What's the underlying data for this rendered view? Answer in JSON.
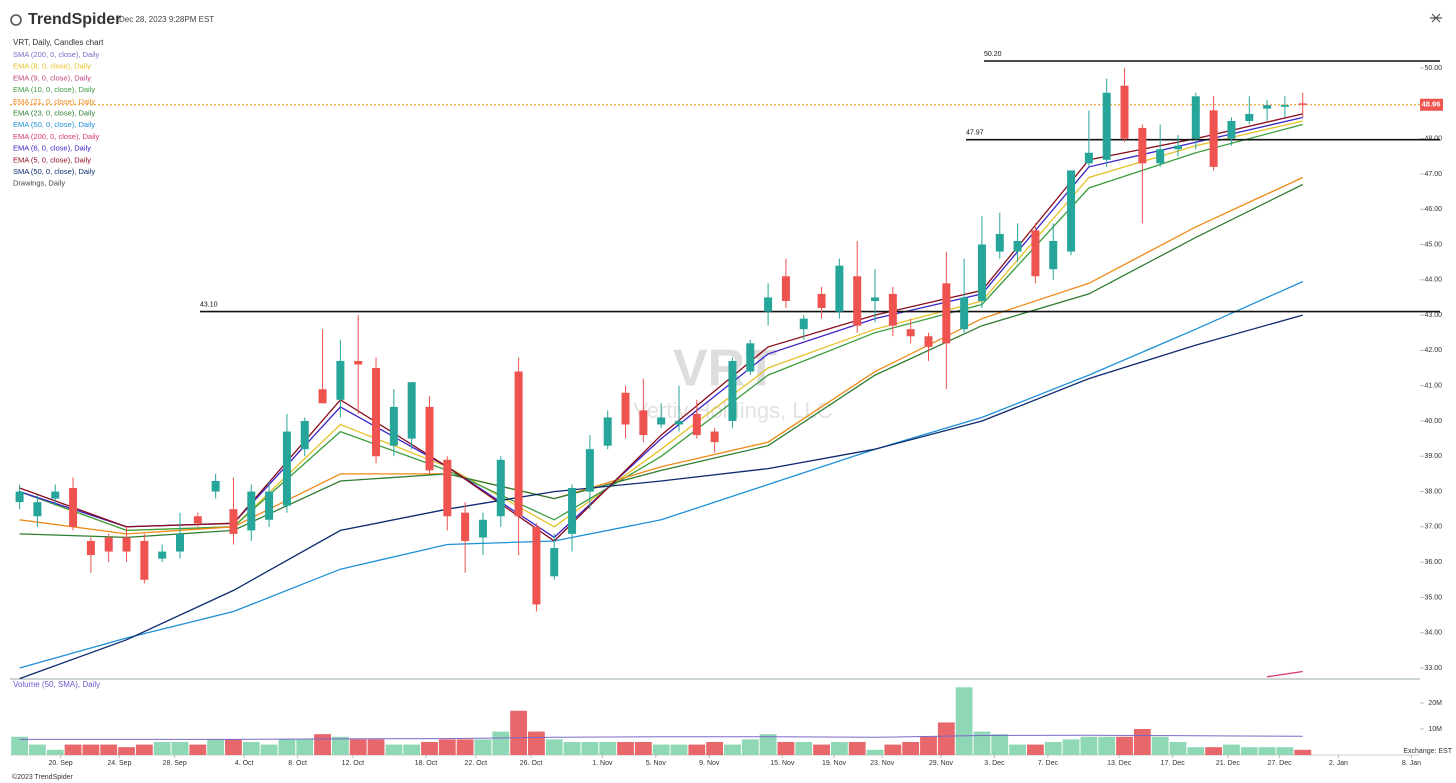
{
  "header": {
    "brand": "TrendSpider",
    "timestamp": "Dec 28, 2023 9:28PM EST",
    "footer": "©2023 TrendSpider",
    "exchange": "Exchange: EST"
  },
  "chart_data": {
    "type": "candlestick",
    "title": "VRT, Daily, Candles chart",
    "watermark": "VRT",
    "subtitle": "Vertiv Holdings, LLC",
    "open": [
      37.7,
      37.3,
      37.8,
      38.1,
      36.6,
      36.7,
      36.7,
      36.6,
      36.1,
      36.3,
      37.3,
      38.0,
      37.5,
      36.9,
      37.2,
      37.6,
      39.2,
      40.9,
      40.6,
      41.7,
      41.5,
      39.3,
      39.5,
      40.4,
      38.9,
      37.4,
      36.7,
      37.3,
      41.4,
      37.0,
      35.6,
      36.8,
      38.0,
      39.3,
      40.8,
      40.3,
      39.9,
      39.9,
      40.2,
      39.7,
      40.0,
      41.4,
      43.1,
      44.1,
      42.6,
      43.6,
      43.1,
      44.1,
      43.4,
      43.6,
      42.6,
      42.4,
      43.9,
      42.6,
      43.4,
      44.8,
      44.8,
      45.4,
      44.3,
      44.8,
      47.3,
      47.4,
      49.5,
      48.3,
      47.3,
      47.7,
      48.0,
      48.8,
      48.0,
      48.5,
      48.85,
      48.9,
      49.0
    ],
    "high": [
      38.2,
      37.9,
      38.2,
      38.4,
      36.7,
      36.8,
      37.0,
      36.8,
      36.5,
      37.4,
      37.4,
      38.5,
      38.4,
      38.2,
      38.3,
      40.2,
      40.1,
      42.6,
      42.3,
      43.0,
      41.8,
      40.9,
      41.1,
      40.7,
      39.0,
      37.7,
      37.4,
      39.0,
      41.8,
      37.1,
      36.8,
      38.2,
      39.6,
      40.3,
      41.0,
      41.2,
      40.5,
      41.0,
      40.6,
      39.8,
      41.8,
      42.3,
      43.9,
      44.6,
      43.0,
      43.8,
      44.6,
      45.1,
      44.3,
      43.8,
      42.9,
      42.5,
      44.8,
      44.6,
      45.8,
      45.9,
      45.6,
      45.6,
      45.6,
      47.1,
      48.8,
      49.7,
      50.0,
      48.4,
      48.4,
      48.1,
      49.3,
      49.2,
      48.6,
      49.2,
      49.1,
      49.2,
      49.3
    ],
    "low": [
      37.5,
      37.0,
      37.6,
      36.9,
      35.7,
      36.0,
      36.0,
      35.4,
      36.0,
      36.1,
      37.0,
      37.8,
      36.5,
      36.6,
      37.0,
      37.4,
      39.0,
      40.5,
      40.1,
      40.2,
      38.8,
      39.0,
      39.2,
      38.5,
      36.9,
      35.7,
      36.2,
      37.0,
      36.2,
      34.6,
      35.5,
      36.3,
      37.5,
      39.2,
      39.5,
      39.4,
      39.8,
      39.7,
      39.5,
      39.1,
      39.8,
      41.3,
      42.7,
      43.2,
      42.3,
      42.9,
      42.9,
      42.5,
      42.8,
      42.4,
      42.2,
      41.7,
      40.9,
      42.5,
      43.2,
      44.6,
      44.5,
      43.9,
      44.0,
      44.7,
      47.2,
      47.2,
      47.9,
      45.6,
      47.2,
      47.5,
      47.7,
      47.1,
      47.8,
      48.4,
      48.5,
      48.6,
      48.6
    ],
    "close": [
      38.0,
      37.7,
      38.0,
      37.0,
      36.2,
      36.3,
      36.3,
      35.5,
      36.3,
      36.8,
      37.1,
      38.3,
      36.8,
      38.0,
      38.0,
      39.7,
      40.0,
      40.5,
      41.7,
      41.6,
      39.0,
      40.4,
      41.1,
      38.6,
      37.3,
      36.6,
      37.2,
      38.9,
      37.3,
      34.8,
      36.4,
      38.1,
      39.2,
      40.1,
      39.9,
      39.6,
      40.1,
      40.0,
      39.6,
      39.4,
      41.7,
      42.2,
      43.5,
      43.4,
      42.9,
      43.2,
      44.4,
      42.7,
      43.5,
      42.7,
      42.4,
      42.1,
      42.2,
      43.5,
      45.0,
      45.3,
      45.1,
      44.1,
      45.1,
      47.1,
      47.6,
      49.3,
      48.0,
      47.3,
      47.7,
      47.8,
      49.2,
      47.2,
      48.5,
      48.7,
      48.95,
      48.95,
      48.96
    ],
    "up_color": "#26a69a",
    "down_color": "#ef5350",
    "ylim": [
      32.7,
      50.5
    ],
    "yticks": [
      {
        "value": 33,
        "label": "33.00"
      },
      {
        "value": 34,
        "label": "34.00"
      },
      {
        "value": 35,
        "label": "35.00"
      },
      {
        "value": 36,
        "label": "36.00"
      },
      {
        "value": 37,
        "label": "37.00"
      },
      {
        "value": 38,
        "label": "38.00"
      },
      {
        "value": 39,
        "label": "39.00"
      },
      {
        "value": 40,
        "label": "40.00"
      },
      {
        "value": 41,
        "label": "41.00"
      },
      {
        "value": 42,
        "label": "42.00"
      },
      {
        "value": 43,
        "label": "43.00"
      },
      {
        "value": 44,
        "label": "44.00"
      },
      {
        "value": 45,
        "label": "45.00"
      },
      {
        "value": 46,
        "label": "46.00"
      },
      {
        "value": 47,
        "label": "47.00"
      },
      {
        "value": 48,
        "label": "48.00"
      },
      {
        "value": 49,
        "label": "49.00"
      },
      {
        "value": 50,
        "label": "50.00"
      }
    ],
    "xlim": [
      -1.1,
      80.6
    ],
    "xticks": [
      {
        "value": 2.3,
        "label": "20. Sep"
      },
      {
        "value": 5.6,
        "label": "24. Sep"
      },
      {
        "value": 8.7,
        "label": "28. Sep"
      },
      {
        "value": 12.6,
        "label": "4. Oct"
      },
      {
        "value": 15.6,
        "label": "8. Oct"
      },
      {
        "value": 18.7,
        "label": "12. Oct"
      },
      {
        "value": 22.8,
        "label": "18. Oct"
      },
      {
        "value": 25.6,
        "label": "22. Oct"
      },
      {
        "value": 28.7,
        "label": "26. Oct"
      },
      {
        "value": 32.7,
        "label": "1. Nov"
      },
      {
        "value": 35.7,
        "label": "5. Nov"
      },
      {
        "value": 38.7,
        "label": "9. Nov"
      },
      {
        "value": 42.8,
        "label": "15. Nov"
      },
      {
        "value": 45.7,
        "label": "19. Nov"
      },
      {
        "value": 48.4,
        "label": "23. Nov"
      },
      {
        "value": 51.7,
        "label": "29. Nov"
      },
      {
        "value": 54.7,
        "label": "3. Dec"
      },
      {
        "value": 57.7,
        "label": "7. Dec"
      },
      {
        "value": 61.7,
        "label": "13. Dec"
      },
      {
        "value": 64.7,
        "label": "17. Dec"
      },
      {
        "value": 67.8,
        "label": "21. Dec"
      },
      {
        "value": 70.7,
        "label": "27. Dec"
      },
      {
        "value": 74.0,
        "label": "2. Jan"
      },
      {
        "value": 78.1,
        "label": "8. Jan"
      }
    ],
    "line_x": [
      0,
      6,
      12,
      18,
      24,
      30,
      36,
      42,
      48,
      54,
      60,
      66,
      72
    ],
    "series": [
      {
        "name": "SMA (200, 0, close), Daily",
        "color": "#7b68c8"
      },
      {
        "name": "EMA (8, 0, close), Daily",
        "color": "#e6c229",
        "values": [
          38.0,
          36.9,
          37.0,
          39.9,
          38.7,
          37.0,
          39.2,
          41.5,
          42.6,
          43.4,
          46.9,
          47.8,
          48.5
        ]
      },
      {
        "name": "EMA (9, 0, close), Daily",
        "color": "#c2417c"
      },
      {
        "name": "EMA (10, 0, close), Daily",
        "color": "#3a9d3f",
        "values": [
          38.0,
          36.9,
          37.0,
          39.7,
          38.6,
          37.2,
          39.0,
          41.3,
          42.5,
          43.3,
          46.6,
          47.6,
          48.4
        ]
      },
      {
        "name": "EMA (21, 0, close), Daily",
        "color": "#ef8a17",
        "values": [
          37.2,
          36.8,
          37.0,
          38.5,
          38.5,
          37.8,
          38.7,
          39.4,
          41.4,
          42.9,
          43.9,
          45.5,
          46.9
        ]
      },
      {
        "name": "EMA (23, 0, close), Daily",
        "color": "#2e7d32",
        "values": [
          36.8,
          36.7,
          36.9,
          38.3,
          38.5,
          37.8,
          38.6,
          39.3,
          41.3,
          42.7,
          43.6,
          45.2,
          46.7
        ]
      },
      {
        "name": "EMA (50, 0, close), Daily",
        "color": "#1e90d8",
        "values": [
          33.0,
          33.85,
          34.6,
          35.8,
          36.5,
          36.6,
          37.2,
          38.2,
          39.2,
          40.1,
          41.3,
          42.6,
          43.95
        ]
      },
      {
        "name": "EMA (200, 0, close), Daily",
        "color": "#d63864",
        "x": [
          70,
          72
        ],
        "values": [
          32.75,
          32.9
        ]
      },
      {
        "name": "EMA (6, 0, close), Daily",
        "color": "#3a22c8",
        "values": [
          38.0,
          37.0,
          37.1,
          40.4,
          38.7,
          36.7,
          39.5,
          41.9,
          42.9,
          43.6,
          47.2,
          47.9,
          48.6
        ]
      },
      {
        "name": "EMA (5, 0, close), Daily",
        "color": "#8b0a1a",
        "values": [
          38.1,
          37.0,
          37.1,
          40.6,
          38.7,
          36.6,
          39.6,
          42.1,
          43.0,
          43.7,
          47.4,
          48.0,
          48.7
        ]
      },
      {
        "name": "SMA (50, 0, close), Daily",
        "color": "#0d2a6e",
        "values": [
          32.7,
          33.8,
          35.2,
          36.9,
          37.5,
          38.0,
          38.3,
          38.65,
          39.2,
          40.0,
          41.2,
          42.15,
          43.0
        ]
      },
      {
        "name": "Drawings, Daily",
        "color": "#444444"
      }
    ],
    "levels": [
      {
        "value": 43.1,
        "label": "43.10"
      },
      {
        "value": 47.97,
        "label": "47.97"
      },
      {
        "value": 50.2,
        "label": "50.20"
      }
    ],
    "last_price": {
      "value": 48.96,
      "label": "48.96",
      "color": "#ef8a17"
    },
    "volume": {
      "title": "Volume (50, SMA), Daily",
      "values": [
        7,
        4,
        2,
        4,
        4,
        4,
        3,
        4,
        5,
        5,
        4,
        6,
        6,
        5,
        4,
        6,
        6,
        8,
        7,
        6,
        6,
        4,
        4,
        5,
        6,
        6,
        6,
        9,
        17,
        9,
        6,
        5,
        5,
        5,
        5,
        5,
        4,
        4,
        4,
        5,
        4,
        6,
        8,
        5,
        5,
        4,
        5,
        5,
        2,
        4,
        5,
        7,
        12.5,
        26,
        9,
        8,
        4,
        4,
        5,
        6,
        7,
        7,
        7,
        10,
        7,
        5,
        3,
        3,
        4,
        3,
        3,
        3,
        2
      ],
      "up_color": "#8fd8b5",
      "down_color": "#e8676b",
      "sma": [
        6,
        6,
        6,
        6.2,
        6.3,
        6.8,
        7,
        7,
        6.8,
        7.5,
        7.6,
        7.4,
        7.2
      ],
      "sma_color": "#7b68c8",
      "ylim": [
        0,
        26.5
      ],
      "yticks": [
        {
          "value": 10,
          "label": "10M"
        },
        {
          "value": 20,
          "label": "20M"
        }
      ]
    }
  }
}
